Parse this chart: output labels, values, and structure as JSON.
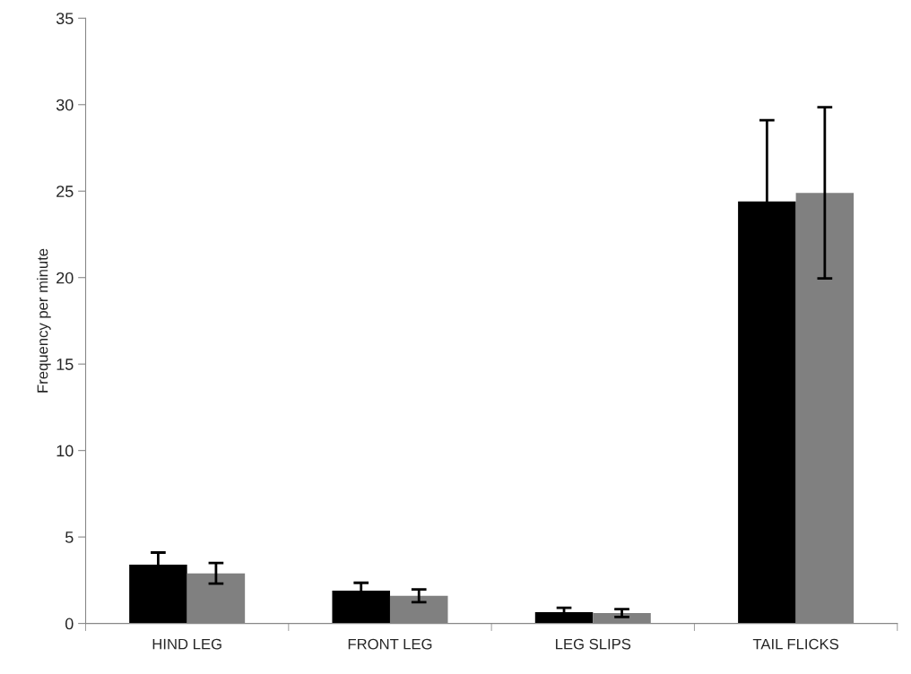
{
  "chart_data": {
    "type": "bar",
    "ylabel": "Frequency per minute",
    "categories": [
      "HIND LEG",
      "FRONT LEG",
      "LEG SLIPS",
      "TAIL FLICKS"
    ],
    "series": [
      {
        "color": "#000000",
        "values": [
          3.4,
          1.9,
          0.65,
          24.4
        ],
        "errors": [
          0.7,
          0.45,
          0.25,
          4.7
        ]
      },
      {
        "color": "#808080",
        "values": [
          2.9,
          1.6,
          0.6,
          24.9
        ],
        "errors": [
          0.6,
          0.37,
          0.23,
          4.95
        ]
      }
    ],
    "ylim": [
      0,
      35
    ],
    "yticks": [
      0,
      5,
      10,
      15,
      20,
      25,
      30,
      35
    ],
    "grid": false,
    "legend": false
  }
}
